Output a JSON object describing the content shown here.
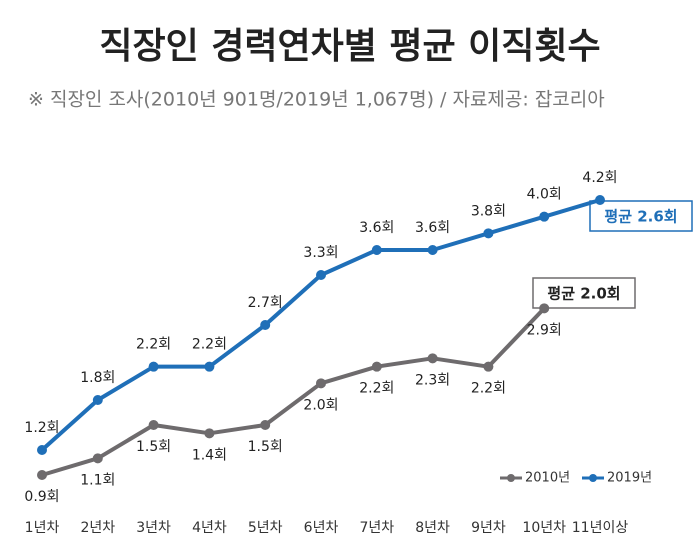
{
  "chart_data": {
    "type": "line",
    "title": "직장인 경력연차별 평균 이직횟수",
    "subtitle": "※ 직장인 조사(2010년 901명/2019년 1,067명) / 자료제공: 잡코리아",
    "categories": [
      "1년차",
      "2년차",
      "3년차",
      "4년차",
      "5년차",
      "6년차",
      "7년차",
      "8년차",
      "9년차",
      "10년차",
      "11년이상"
    ],
    "series": [
      {
        "name": "2010년",
        "color": "#6e6b6d",
        "values": [
          0.9,
          1.1,
          1.5,
          1.4,
          1.5,
          2.0,
          2.2,
          2.3,
          2.2,
          2.9,
          null
        ],
        "value_labels": [
          "0.9회",
          "1.1회",
          "1.5회",
          "1.4회",
          "1.5회",
          "2.0회",
          "2.2회",
          "2.3회",
          "2.2회",
          "2.9회",
          null
        ]
      },
      {
        "name": "2019년",
        "color": "#1f6fb8",
        "values": [
          1.2,
          1.8,
          2.2,
          2.2,
          2.7,
          3.3,
          3.6,
          3.6,
          3.8,
          4.0,
          4.2
        ],
        "value_labels": [
          "1.2회",
          "1.8회",
          "2.2회",
          "2.2회",
          "2.7회",
          "3.3회",
          "3.6회",
          "3.6회",
          "3.8회",
          "4.0회",
          "4.2회"
        ]
      }
    ],
    "annotations": [
      "평균 2.6회",
      "평균 2.0회"
    ]
  }
}
